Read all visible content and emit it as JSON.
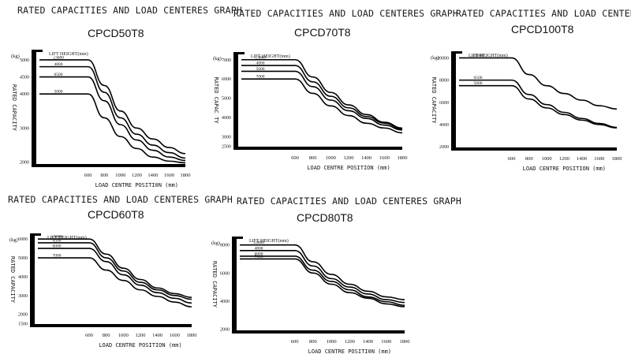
{
  "chart_data": [
    {
      "type": "line",
      "title": "RATED CAPACITIES AND LOAD CENTERES GRAPH",
      "model": "CPCD50T8",
      "xlabel": "LOAD CENTRE POSITI0N (mm)",
      "ylabel": "RATED CAPACITY",
      "unit": "(kg)",
      "lift_height_label": "LIFT HEIGHT(mm)",
      "x_ticks": [
        600,
        800,
        1000,
        1200,
        1400,
        1600,
        1800
      ],
      "y_ticks": [
        2000,
        3000,
        4000,
        4500,
        5000
      ],
      "xlim": [
        0,
        1800
      ],
      "ylim": [
        1900,
        5300
      ],
      "series": [
        {
          "name": "≤3600",
          "x": [
            0,
            600,
            800,
            1000,
            1200,
            1400,
            1600,
            1800
          ],
          "y": [
            5000,
            5000,
            4250,
            3500,
            3000,
            2680,
            2430,
            2250
          ]
        },
        {
          "name": "4800",
          "x": [
            0,
            600,
            800,
            1000,
            1200,
            1400,
            1600,
            1800
          ],
          "y": [
            4800,
            4800,
            4050,
            3300,
            2820,
            2500,
            2280,
            2120
          ]
        },
        {
          "name": "6500",
          "x": [
            0,
            600,
            800,
            1000,
            1200,
            1400,
            1600,
            1800
          ],
          "y": [
            4500,
            4500,
            3800,
            3100,
            2650,
            2350,
            2150,
            2050
          ]
        },
        {
          "name": "5000",
          "x": [
            0,
            600,
            800,
            1000,
            1200,
            1400,
            1600,
            1800
          ],
          "y": [
            4000,
            4000,
            3300,
            2750,
            2400,
            2150,
            2030,
            1980
          ]
        }
      ]
    },
    {
      "type": "line",
      "title": "RATED CAPACITIES AND LOAD CENTERES GRAPH",
      "model": "CPCD70T8",
      "xlabel": "LOAD CENTRE POSITION (mm)",
      "ylabel": "RATED CAPAC TY",
      "unit": "(kg)",
      "lift_height_label": "LIFT HEIGHT(mm)",
      "x_ticks": [
        600,
        800,
        1000,
        1200,
        1400,
        1600,
        1800
      ],
      "y_ticks": [
        2500,
        3000,
        4000,
        5000,
        6000,
        7000
      ],
      "xlim": [
        0,
        1800
      ],
      "ylim": [
        2400,
        7400
      ],
      "series": [
        {
          "name": "≤3600",
          "x": [
            0,
            600,
            800,
            1000,
            1200,
            1400,
            1600,
            1800
          ],
          "y": [
            7000,
            7000,
            6100,
            5300,
            4650,
            4150,
            3750,
            3450
          ]
        },
        {
          "name": "4800",
          "x": [
            0,
            600,
            800,
            1000,
            1200,
            1400,
            1600,
            1800
          ],
          "y": [
            6700,
            6700,
            5850,
            5100,
            4500,
            4050,
            3700,
            3400
          ]
        },
        {
          "name": "5000",
          "x": [
            0,
            600,
            800,
            1000,
            1200,
            1400,
            1600,
            1800
          ],
          "y": [
            6400,
            6400,
            5600,
            4900,
            4350,
            3950,
            3600,
            3350
          ]
        },
        {
          "name": "7000",
          "x": [
            0,
            600,
            800,
            1000,
            1200,
            1400,
            1600,
            1800
          ],
          "y": [
            6000,
            6000,
            5250,
            4600,
            4100,
            3700,
            3450,
            3200
          ]
        }
      ]
    },
    {
      "type": "line",
      "title": "RATED CAPACITIES AND LOAD CENTERES GRAPH",
      "model": "CPCD100T8",
      "xlabel": "LOAD CENTRE POSITION (mm)",
      "ylabel": "RATED CAPACITY",
      "unit": "(kg)",
      "lift_height_label": "LIFT HEIGHT(mm)",
      "x_ticks": [
        600,
        800,
        1000,
        1200,
        1400,
        1600,
        1800
      ],
      "y_ticks": [
        2000,
        4000,
        6000,
        8000,
        10000
      ],
      "xlim": [
        0,
        1800
      ],
      "ylim": [
        1800,
        10600
      ],
      "series": [
        {
          "name": "≤4000",
          "x": [
            0,
            600,
            800,
            1000,
            1200,
            1400,
            1600,
            1800
          ],
          "y": [
            10000,
            10000,
            8500,
            7500,
            6800,
            6200,
            5700,
            5400
          ]
        },
        {
          "name": "6500",
          "x": [
            0,
            600,
            800,
            1000,
            1200,
            1400,
            1600,
            1800
          ],
          "y": [
            8000,
            8000,
            6700,
            5800,
            5100,
            4550,
            4100,
            3750
          ]
        },
        {
          "name": "5000",
          "x": [
            0,
            600,
            800,
            1000,
            1200,
            1400,
            1600,
            1800
          ],
          "y": [
            7500,
            7500,
            6300,
            5500,
            4900,
            4400,
            4000,
            3700
          ]
        }
      ]
    },
    {
      "type": "line",
      "title": "RATED CAPACITIES AND LOAD CENTERES GRAPH",
      "model": "CPCD60T8",
      "xlabel": "LOAD CENTRE POSITION (mm)",
      "ylabel": "RATED CAPACITY",
      "unit": "(kg)",
      "lift_height_label": "LIFT HEIGHT(mm)",
      "x_ticks": [
        600,
        800,
        1000,
        1200,
        1400,
        1600,
        1800
      ],
      "y_ticks": [
        1500,
        2000,
        3000,
        4000,
        5000,
        6000
      ],
      "xlim": [
        0,
        1800
      ],
      "ylim": [
        1400,
        6300
      ],
      "series": [
        {
          "name": "≤3600",
          "x": [
            0,
            600,
            800,
            1000,
            1200,
            1400,
            1600,
            1800
          ],
          "y": [
            6000,
            6000,
            5200,
            4450,
            3850,
            3400,
            3100,
            2900
          ]
        },
        {
          "name": "4500",
          "x": [
            0,
            600,
            800,
            1000,
            1200,
            1400,
            1600,
            1800
          ],
          "y": [
            5800,
            5800,
            5000,
            4300,
            3700,
            3300,
            3000,
            2800
          ]
        },
        {
          "name": "6000",
          "x": [
            0,
            600,
            800,
            1000,
            1200,
            1400,
            1600,
            1800
          ],
          "y": [
            5500,
            5500,
            4800,
            4100,
            3550,
            3150,
            2850,
            2600
          ]
        },
        {
          "name": "7000",
          "x": [
            0,
            600,
            800,
            1000,
            1200,
            1400,
            1600,
            1800
          ],
          "y": [
            5000,
            5000,
            4350,
            3800,
            3300,
            2950,
            2650,
            2400
          ]
        }
      ]
    },
    {
      "type": "line",
      "title": "RATED CAPACITIES AND LOAD CENTERES GRAPH",
      "model": "CPCD80T8",
      "xlabel": "LOAD CENTRE POSITI0N (mm)",
      "ylabel": "RATED CAPACITY",
      "unit": "(kg)",
      "lift_height_label": "LIFT HEIGHT(mm)",
      "x_ticks": [
        600,
        800,
        1000,
        1200,
        1400,
        1600,
        1800
      ],
      "y_ticks": [
        2000,
        4000,
        6000,
        8000
      ],
      "xlim": [
        0,
        1800
      ],
      "ylim": [
        1800,
        8600
      ],
      "series": [
        {
          "name": "≤3600",
          "x": [
            0,
            600,
            800,
            1000,
            1200,
            1400,
            1600,
            1800
          ],
          "y": [
            8000,
            8000,
            6800,
            5900,
            5200,
            4700,
            4300,
            4100
          ]
        },
        {
          "name": "4800",
          "x": [
            0,
            600,
            800,
            1000,
            1200,
            1400,
            1600,
            1800
          ],
          "y": [
            7600,
            7600,
            6500,
            5600,
            5000,
            4500,
            4100,
            3900
          ]
        },
        {
          "name": "6000",
          "x": [
            0,
            600,
            800,
            1000,
            1200,
            1400,
            1600,
            1800
          ],
          "y": [
            7200,
            7200,
            6200,
            5400,
            4800,
            4300,
            3950,
            3700
          ]
        },
        {
          "name": "7000",
          "x": [
            0,
            600,
            800,
            1000,
            1200,
            1400,
            1600,
            1800
          ],
          "y": [
            7000,
            7000,
            6000,
            5200,
            4600,
            4200,
            3800,
            3600
          ]
        }
      ]
    }
  ]
}
